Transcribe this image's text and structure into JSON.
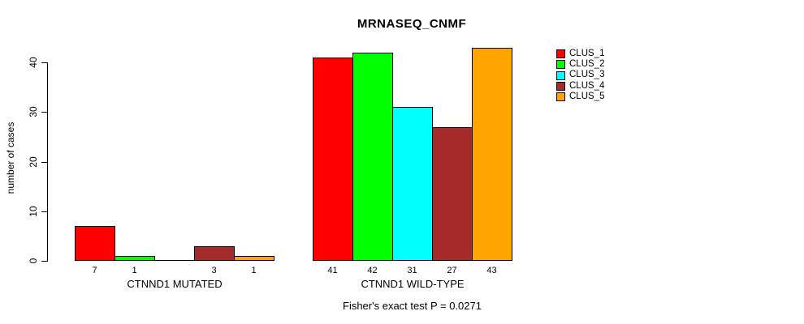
{
  "chart": {
    "title": "MRNASEQ_CNMF",
    "y_axis_label": "number of cases",
    "caption": "Fisher's exact test P = 0.0271"
  },
  "chart_data": {
    "type": "bar",
    "title": "MRNASEQ_CNMF",
    "xlabel": "",
    "ylabel": "number of cases",
    "ylim": [
      0,
      43
    ],
    "yticks": [
      0,
      10,
      20,
      30,
      40
    ],
    "grid": false,
    "legend_position": "right",
    "legend": [
      {
        "label": "CLUS_1",
        "color": "#ff0000"
      },
      {
        "label": "CLUS_2",
        "color": "#00ff00"
      },
      {
        "label": "CLUS_3",
        "color": "#00ffff"
      },
      {
        "label": "CLUS_4",
        "color": "#a52a2a"
      },
      {
        "label": "CLUS_5",
        "color": "#ffa500"
      }
    ],
    "series": [
      "CLUS_1",
      "CLUS_2",
      "CLUS_3",
      "CLUS_4",
      "CLUS_5"
    ],
    "groups": [
      {
        "label": "CTNND1 MUTATED",
        "values": [
          7,
          1,
          0,
          3,
          1
        ]
      },
      {
        "label": "CTNND1 WILD-TYPE",
        "values": [
          41,
          42,
          31,
          27,
          43
        ]
      }
    ],
    "zero_bars_unlabeled": true,
    "bar_border_color": "#000000",
    "footnote": "Fisher's exact test P = 0.0271"
  }
}
